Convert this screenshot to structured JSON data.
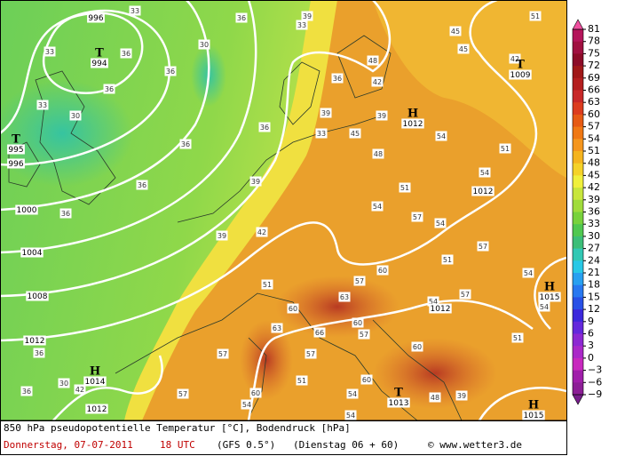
{
  "map": {
    "pressure_centers": [
      {
        "letter": "T",
        "value": 994
      },
      {
        "letter": "T",
        "value": 995
      },
      {
        "letter": "H",
        "value": 1012
      },
      {
        "letter": "T",
        "value": 1009
      },
      {
        "letter": "H",
        "value": 1015
      },
      {
        "letter": "H",
        "value": 1014
      },
      {
        "letter": "T",
        "value": 1013
      },
      {
        "letter": "H",
        "value": 1015
      }
    ],
    "isobar_labels": [
      996,
      996,
      1000,
      1004,
      1008,
      1012,
      1012,
      1012,
      1012
    ],
    "temperature_labels": [
      33,
      39,
      33,
      36,
      30,
      36,
      33,
      33,
      30,
      36,
      36,
      36,
      42,
      39,
      39,
      33,
      36,
      45,
      36,
      48,
      48,
      36,
      39,
      36,
      42,
      39,
      51,
      54,
      51,
      54,
      54,
      57,
      54,
      57,
      51,
      54,
      60,
      57,
      51,
      60,
      63,
      66,
      60,
      57,
      57,
      63,
      54,
      57,
      54,
      60,
      51,
      57,
      60,
      57,
      54,
      60,
      51,
      54,
      54,
      48,
      36,
      30,
      42,
      36,
      39,
      45,
      45,
      51,
      42
    ]
  },
  "colorbar": {
    "labels": [
      81,
      78,
      75,
      72,
      69,
      66,
      63,
      60,
      57,
      54,
      51,
      48,
      45,
      42,
      39,
      36,
      33,
      30,
      27,
      24,
      21,
      18,
      15,
      12,
      9,
      6,
      3,
      0,
      {
        "value": -3,
        "label": "−3"
      },
      {
        "value": -6,
        "label": "−6"
      },
      {
        "value": -9,
        "label": "−9"
      }
    ],
    "colors": [
      "#b4145a",
      "#a01040",
      "#8c0c28",
      "#a01818",
      "#b41e1e",
      "#c82828",
      "#dc3c1e",
      "#e65a14",
      "#f07814",
      "#f5961e",
      "#f5b41e",
      "#f5d228",
      "#f0f03c",
      "#c8e63c",
      "#a0dc3c",
      "#78d23c",
      "#50c850",
      "#3cbe78",
      "#32c8b4",
      "#28c8e6",
      "#28a0f0",
      "#2878f0",
      "#2850e6",
      "#3c28dc",
      "#6428dc",
      "#8c28d2",
      "#aa28c8",
      "#c828be",
      "#a01eaa",
      "#8c1e96"
    ]
  },
  "caption": {
    "line1": "850 hPa pseudopotentielle Temperatur [°C], Bodendruck [hPa]",
    "date": "Donnerstag, 07-07-2011",
    "time": "18 UTC",
    "model": "(GFS 0.5°)",
    "run": "(Dienstag 06 + 60)",
    "credit": "© www.wetter3.de"
  }
}
